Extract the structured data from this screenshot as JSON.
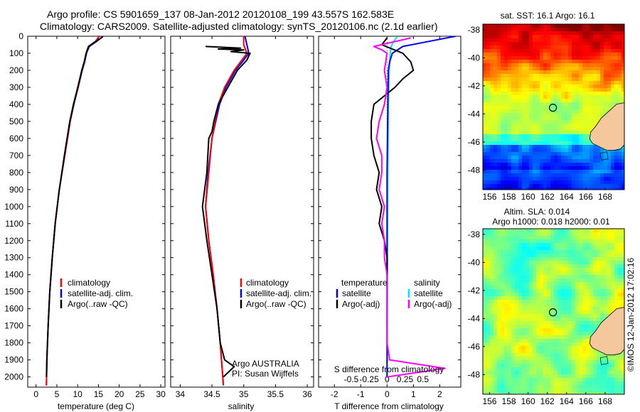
{
  "header": {
    "title_line1": "Argo profile: CS 5901659_137 08-Jan-2012 20120108_199 43.557S 162.583E",
    "title_line2": "Climatology: CARS2009. Satellite-adjusted climatology: synTS_20120106.nc (2.1d earlier)"
  },
  "colors": {
    "climatology": "#ff0000",
    "satellite": "#0000ff",
    "argo": "#000000",
    "salinity_satellite": "#00e5ff",
    "salinity_argo": "#ff00ff"
  },
  "chart_data": [
    {
      "type": "line",
      "xlabel": "temperature (deg C)",
      "ylabel": "",
      "xlim": [
        -2,
        31
      ],
      "ylim": [
        2060,
        0
      ],
      "xticks": [
        0,
        5,
        10,
        15,
        20,
        25,
        30
      ],
      "yticks": [
        0,
        100,
        200,
        300,
        400,
        500,
        600,
        700,
        800,
        900,
        1000,
        1100,
        1200,
        1300,
        1400,
        1500,
        1600,
        1700,
        1800,
        1900,
        2000
      ],
      "legend": [
        "climatology",
        "satellite-adj. clim.",
        "Argo(..raw -QC)"
      ],
      "series": [
        {
          "name": "climatology",
          "color": "#ff0000",
          "depth": [
            0,
            30,
            60,
            100,
            150,
            200,
            300,
            400,
            500,
            700,
            900,
            1100,
            1300,
            1500,
            1700,
            1900,
            2050
          ],
          "values": [
            15.2,
            14.3,
            12.6,
            12.0,
            11.6,
            11.0,
            10.0,
            9.0,
            8.2,
            6.9,
            5.6,
            4.6,
            3.9,
            3.3,
            2.9,
            2.6,
            2.5
          ]
        },
        {
          "name": "satellite-adj. clim.",
          "color": "#0000ff",
          "depth": [
            0,
            30,
            60,
            100,
            150,
            200,
            300,
            400,
            500,
            700,
            900,
            1100,
            1300,
            1500,
            1700,
            1900,
            2050
          ],
          "values": [
            16.1,
            14.6,
            12.8,
            12.1,
            11.7,
            11.1,
            10.1,
            9.1,
            8.2,
            6.9,
            5.6,
            4.6,
            3.9,
            3.3,
            2.9,
            2.6,
            2.5
          ]
        },
        {
          "name": "Argo(..raw -QC)",
          "color": "#000000",
          "depth": [
            5,
            30,
            60,
            100,
            150,
            200,
            300,
            400,
            500,
            700,
            900,
            1100,
            1300,
            1500,
            1700,
            1900,
            2000
          ],
          "values": [
            16.0,
            14.4,
            12.6,
            12.1,
            11.6,
            11.0,
            10.1,
            9.0,
            8.1,
            6.8,
            5.6,
            4.6,
            3.9,
            3.3,
            2.9,
            2.6,
            2.5
          ]
        }
      ]
    },
    {
      "type": "line",
      "xlabel": "salinity",
      "ylabel": "",
      "xlim": [
        33.85,
        36.1
      ],
      "ylim": [
        2060,
        0
      ],
      "xticks": [
        "34",
        "34.5",
        "35",
        "35.5",
        "36"
      ],
      "legend": [
        "climatology",
        "satellite-adj. clim.",
        "Argo(..raw -QC)"
      ],
      "annotation": [
        "Argo AUSTRALIA",
        "PI: Susan Wijffels"
      ],
      "series": [
        {
          "name": "climatology",
          "color": "#ff0000",
          "depth": [
            0,
            50,
            100,
            150,
            200,
            300,
            400,
            500,
            600,
            800,
            1000,
            1200,
            1400,
            1600,
            1800,
            2000,
            2050
          ],
          "values": [
            35.0,
            35.0,
            35.05,
            34.95,
            34.85,
            34.7,
            34.6,
            34.55,
            34.5,
            34.45,
            34.4,
            34.45,
            34.52,
            34.58,
            34.63,
            34.67,
            34.68
          ]
        },
        {
          "name": "satellite-adj. clim.",
          "color": "#0000ff",
          "depth": [
            0,
            50,
            100,
            150,
            200,
            300,
            400,
            500,
            600,
            800,
            1000,
            1200,
            1400,
            1600,
            1800,
            2000,
            2050
          ],
          "values": [
            35.02,
            35.05,
            35.08,
            34.98,
            34.87,
            34.72,
            34.62,
            34.56,
            34.5,
            34.44,
            34.4,
            34.45,
            34.52,
            34.58,
            34.63,
            34.67,
            34.68
          ]
        },
        {
          "name": "Argo(..raw -QC)",
          "color": "#000000",
          "depth": [
            60,
            70,
            75,
            80,
            90,
            100,
            140,
            200,
            300,
            400,
            500,
            560,
            600,
            800,
            1000,
            1200,
            1400,
            1600,
            1800,
            1900,
            1940,
            2000
          ],
          "values": [
            34.4,
            34.95,
            34.6,
            35.0,
            34.8,
            35.1,
            35.05,
            34.9,
            34.75,
            34.6,
            34.53,
            34.5,
            34.45,
            34.42,
            34.35,
            34.42,
            34.5,
            34.58,
            34.63,
            34.7,
            34.85,
            34.68
          ]
        }
      ]
    },
    {
      "type": "line",
      "xlabel": "T difference from climatology",
      "secondary_xlabel": "S difference from climatology",
      "xlim": [
        -2.6,
        2.8
      ],
      "ylim": [
        2060,
        0
      ],
      "xticks": [
        "-2",
        "-1",
        "0",
        "1",
        "2"
      ],
      "secondary_xticks": [
        "-0.5",
        "-0.25",
        "0",
        "0.25",
        "0.5"
      ],
      "legend_headers": [
        "temperature",
        "salinity"
      ],
      "legend": [
        "satellite",
        "Argo(-adj)",
        "satellite",
        "Argo(-adj)"
      ],
      "series": [
        {
          "name": "satellite",
          "color": "#0000ff",
          "depth": [
            0,
            30,
            60,
            100,
            150,
            200,
            400,
            800,
            1200,
            1600,
            2000
          ],
          "values": [
            2.6,
            1.6,
            0.6,
            0.2,
            0.1,
            0.05,
            0.03,
            0.0,
            0.0,
            0.0,
            0.0
          ]
        },
        {
          "name": "Argo(-adj)",
          "color": "#000000",
          "depth": [
            10,
            50,
            100,
            150,
            200,
            250,
            300,
            400,
            500,
            600,
            700,
            800,
            900,
            1000,
            1100,
            1200,
            1300,
            1400
          ],
          "values": [
            0.0,
            -0.2,
            0.6,
            0.9,
            1.0,
            0.6,
            0.3,
            -0.5,
            -0.6,
            -0.6,
            -0.5,
            -0.3,
            -0.4,
            -0.2,
            -0.3,
            -0.1,
            0.0,
            0.0
          ]
        },
        {
          "name": "satellite",
          "color": "#00e5ff",
          "depth": [
            0,
            30,
            60,
            100,
            200,
            400,
            800,
            1200,
            1600,
            2000
          ],
          "values": [
            0.4,
            0.25,
            0.15,
            0.12,
            0.08,
            0.05,
            0.03,
            0.02,
            0.01,
            0.0
          ]
        },
        {
          "name": "Argo(-adj)",
          "color": "#ff00ff",
          "depth": [
            10,
            60,
            80,
            100,
            200,
            300,
            400,
            500,
            600,
            700,
            800,
            900,
            1000,
            1100,
            1200,
            1300,
            1400,
            1600,
            1800,
            1900,
            1950,
            2000
          ],
          "values": [
            0.9,
            -0.5,
            -0.2,
            0.0,
            -0.1,
            0.0,
            -0.1,
            -0.3,
            -0.4,
            -0.2,
            -0.2,
            -0.3,
            -0.1,
            -0.2,
            -0.1,
            -0.1,
            0.0,
            0.0,
            0.0,
            0.1,
            2.2,
            0.0
          ]
        }
      ]
    },
    {
      "type": "heatmap",
      "title": "sat. SST: 16.1  Argo: 16.1",
      "xticks": [
        "156",
        "158",
        "160",
        "162",
        "164",
        "166",
        "168"
      ],
      "yticks": [
        "-38",
        "-40",
        "-42",
        "-44",
        "-46",
        "-48"
      ],
      "xlim": [
        155.3,
        170.0
      ],
      "ylim": [
        -49.4,
        -37.6
      ],
      "marker": {
        "lon": 162.583,
        "lat": -43.557
      }
    },
    {
      "type": "heatmap",
      "title_line1": "Altim. SLA: 0.014",
      "title_line2": "Argo h1000: 0.018 h2000: 0.01",
      "xticks": [
        "156",
        "158",
        "160",
        "162",
        "164",
        "166",
        "168"
      ],
      "yticks": [
        "-38",
        "-40",
        "-42",
        "-44",
        "-46",
        "-48"
      ],
      "xlim": [
        155.3,
        170.0
      ],
      "ylim": [
        -49.4,
        -37.6
      ],
      "marker": {
        "lon": 162.583,
        "lat": -43.557
      }
    }
  ],
  "credit": "©IMOS 12-Jan-2012 17:02:16"
}
